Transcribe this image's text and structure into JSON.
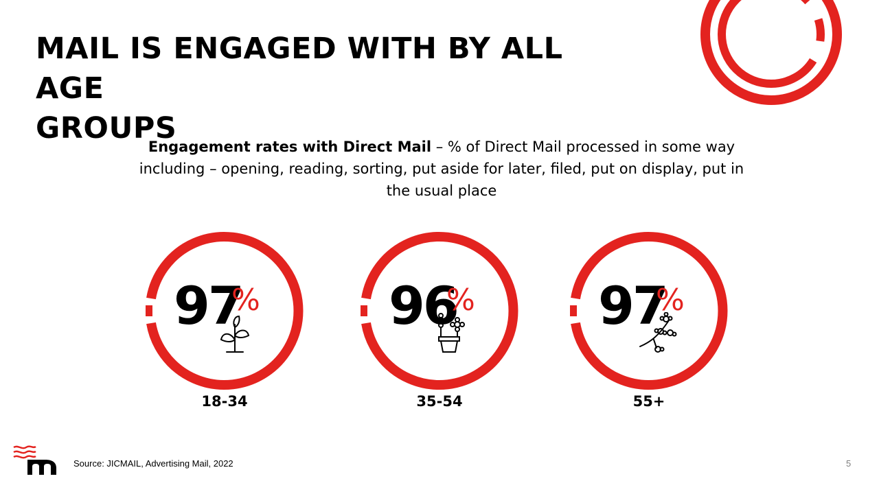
{
  "title_lines": [
    "MAIL IS ENGAGED WITH BY ALL AGE",
    "GROUPS"
  ],
  "subtitle": {
    "bold": "Engagement rates with Direct Mail",
    "rest": " – % of Direct Mail processed in some way including – opening, reading, sorting, put aside for later, filed, put on display, put in the usual place"
  },
  "stats": [
    {
      "value": "97",
      "unit": "%",
      "label": "18-34",
      "icon": "sprout-icon"
    },
    {
      "value": "96",
      "unit": "%",
      "label": "35-54",
      "icon": "potted-flowers-icon"
    },
    {
      "value": "97",
      "unit": "%",
      "label": "55+",
      "icon": "blossom-branch-icon"
    }
  ],
  "footer": {
    "source": "Source:  JICMAIL, Advertising Mail, 2022",
    "page_number": "5"
  },
  "colors": {
    "accent": "#e3231f",
    "text": "#000000",
    "muted": "#7f7f7f"
  }
}
